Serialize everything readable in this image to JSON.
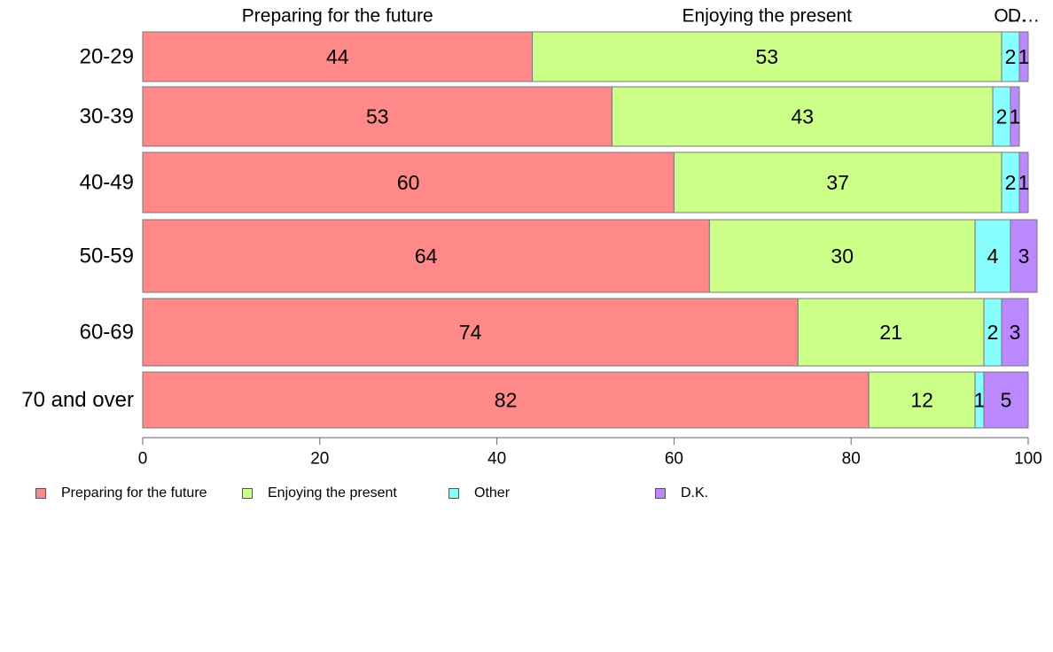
{
  "chart_data": {
    "type": "bar",
    "orientation": "horizontal",
    "stacked": true,
    "categories": [
      "20-29",
      "30-39",
      "40-49",
      "50-59",
      "60-69",
      "70 and over"
    ],
    "series": [
      {
        "name": "Preparing for the future",
        "color": "#ff8888",
        "values": [
          44,
          53,
          60,
          64,
          74,
          82
        ]
      },
      {
        "name": "Enjoying the present",
        "color": "#ccff88",
        "values": [
          53,
          43,
          37,
          30,
          21,
          12
        ]
      },
      {
        "name": "Other",
        "color": "#88ffff",
        "values": [
          2,
          2,
          2,
          4,
          2,
          1
        ]
      },
      {
        "name": "D.K.",
        "color": "#bb88ff",
        "values": [
          1,
          1,
          1,
          3,
          3,
          5
        ]
      }
    ],
    "column_headers": [
      "Preparing for the future",
      "Enjoying the present",
      "O…",
      "D…"
    ],
    "xlim": [
      0,
      100
    ],
    "xticks": [
      0,
      20,
      40,
      60,
      80,
      100
    ],
    "grid": false,
    "legend_position": "bottom-left"
  }
}
